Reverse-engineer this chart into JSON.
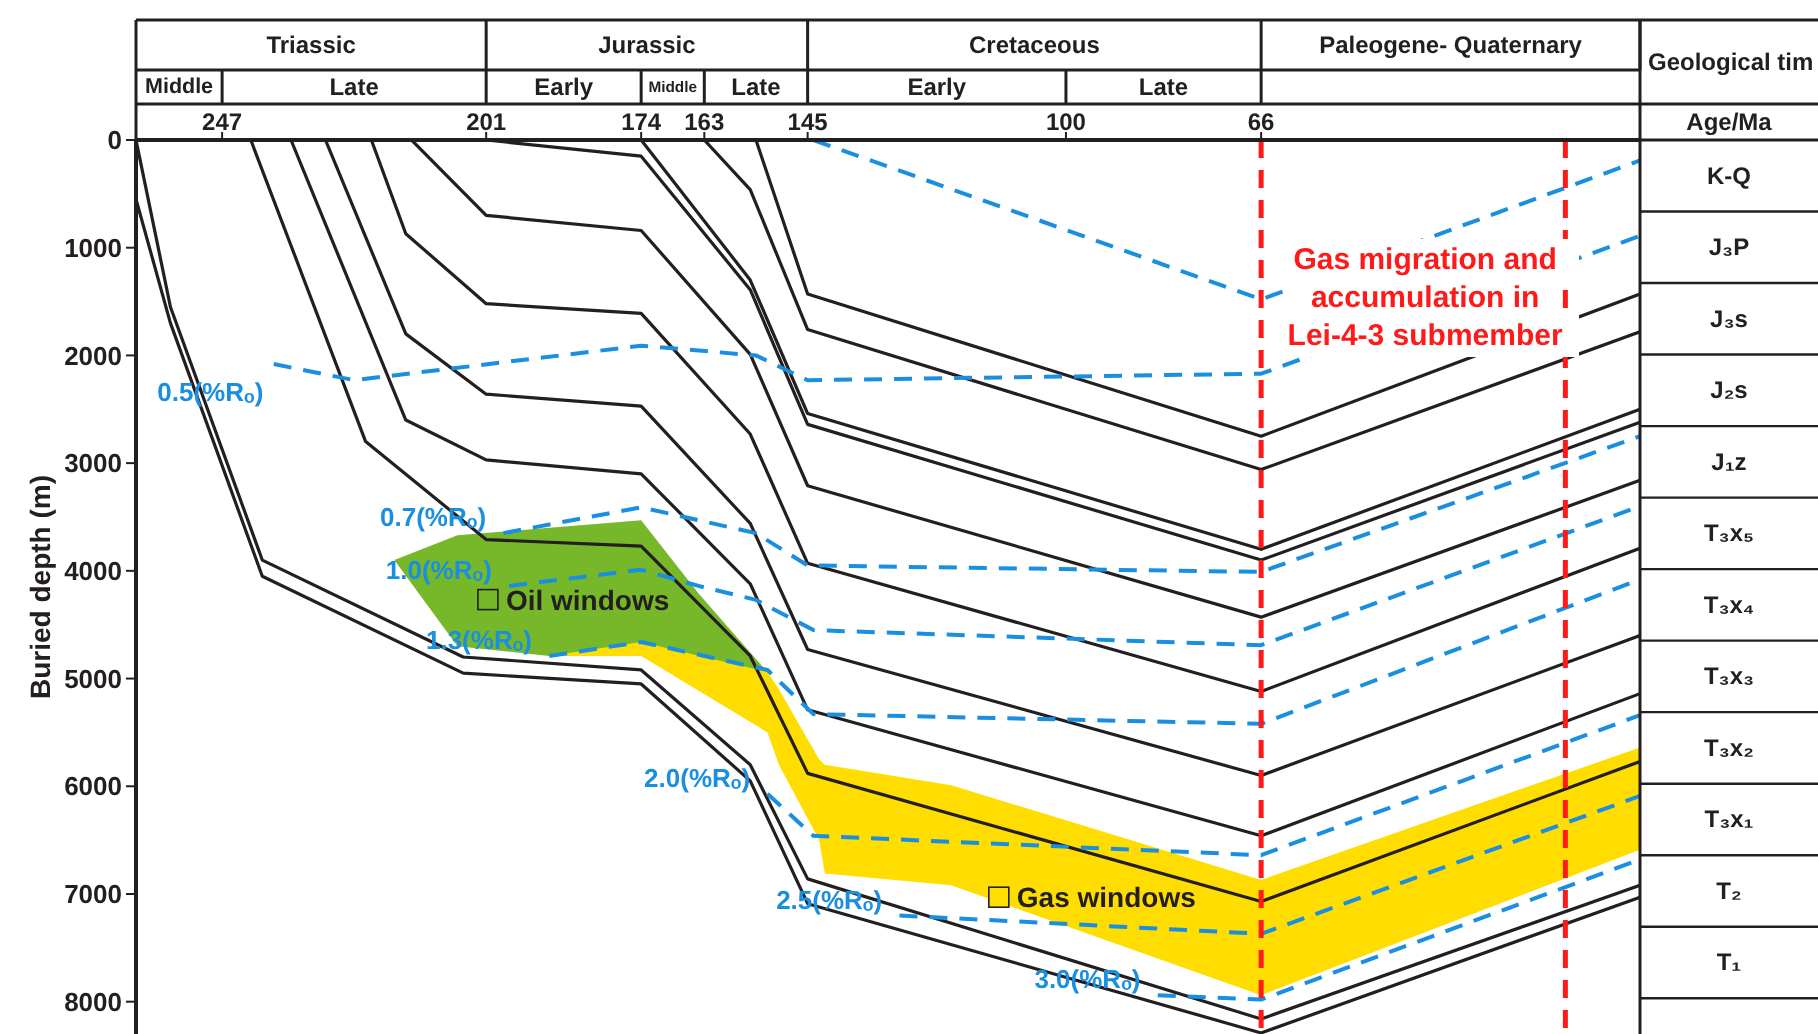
{
  "chart_data": {
    "type": "line",
    "ylabel": "Buried depth (m)",
    "xlabel": "Age/Ma",
    "xlim": [
      262,
      0
    ],
    "xticks": [
      247,
      201,
      174,
      163,
      145,
      100,
      66
    ],
    "ylim": [
      8300,
      0
    ],
    "yticks": [
      0,
      1000,
      2000,
      3000,
      4000,
      5000,
      6000,
      7000,
      8000
    ],
    "marker": "none",
    "series": [
      {
        "name": "Oil windows",
        "color": "#76b82a",
        "x": [
          217,
          206,
          190,
          174,
          164,
          152
        ],
        "values": [
          null,
          null,
          null,
          null,
          null,
          null
        ],
        "lower": [
          3900,
          3670,
          3600,
          3530,
          4210,
          4940
        ],
        "upper": [
          3900,
          4700,
          4790,
          4680,
          4800,
          4940
        ]
      },
      {
        "name": "Gas windows",
        "color": "#ffdd00",
        "x": [
          190,
          174,
          152,
          150,
          143,
          142,
          120,
          66,
          0
        ],
        "values": [
          null,
          null,
          null,
          null,
          null,
          null,
          null,
          null,
          null
        ],
        "lower": [
          4790,
          4660,
          4940,
          5100,
          5750,
          5800,
          5990,
          6870,
          5640
        ],
        "upper": [
          4790,
          4790,
          5500,
          5800,
          6500,
          6810,
          6920,
          7940,
          6590
        ]
      },
      {
        "color": "#231f20",
        "x": [
          154,
          145,
          66,
          0
        ],
        "values": [
          0,
          1430,
          2750,
          1430
        ]
      },
      {
        "color": "#231f20",
        "x": [
          163,
          155,
          145,
          66,
          0
        ],
        "values": [
          0,
          460,
          1760,
          3060,
          1780
        ]
      },
      {
        "color": "#231f20",
        "x": [
          174,
          155,
          145,
          66,
          0
        ],
        "values": [
          0,
          1300,
          2540,
          3800,
          2500
        ]
      },
      {
        "color": "#231f20",
        "x": [
          201,
          174,
          155,
          145,
          66,
          0
        ],
        "values": [
          0,
          150,
          1390,
          2640,
          3900,
          2620
        ]
      },
      {
        "color": "#231f20",
        "x": [
          214,
          201,
          174,
          155,
          145,
          66,
          0
        ],
        "values": [
          0,
          700,
          840,
          1990,
          3210,
          4430,
          3160
        ]
      },
      {
        "color": "#231f20",
        "x": [
          221,
          215,
          201,
          174,
          155,
          145,
          66,
          0
        ],
        "values": [
          0,
          870,
          1520,
          1610,
          2730,
          3930,
          5120,
          3790
        ]
      },
      {
        "color": "#231f20",
        "x": [
          229,
          215,
          201,
          174,
          155,
          145,
          66,
          0
        ],
        "values": [
          0,
          1800,
          2360,
          2470,
          3560,
          4730,
          5900,
          4600
        ]
      },
      {
        "color": "#231f20",
        "x": [
          235,
          215,
          201,
          174,
          155,
          145,
          66,
          0
        ],
        "values": [
          0,
          2600,
          2970,
          3100,
          4120,
          5290,
          6460,
          5140
        ]
      },
      {
        "color": "#231f20",
        "x": [
          242,
          222,
          201,
          174,
          155,
          145,
          66,
          0
        ],
        "values": [
          0,
          2800,
          3710,
          3770,
          4790,
          5880,
          7070,
          5770
        ]
      },
      {
        "color": "#231f20",
        "x": [
          262,
          256,
          240,
          205,
          174,
          155,
          145,
          66,
          0
        ],
        "values": [
          0,
          1550,
          3900,
          4800,
          4920,
          5800,
          6860,
          8160,
          6920
        ]
      },
      {
        "color": "#231f20",
        "x": [
          262,
          256,
          240,
          205,
          174,
          155,
          145,
          66,
          0
        ],
        "values": [
          550,
          1700,
          4050,
          4950,
          5050,
          5950,
          7090,
          8290,
          7030
        ]
      },
      {
        "line_style": "dashed",
        "color": "#1a8fe0",
        "x": [
          144,
          66,
          0
        ],
        "values": [
          0,
          1480,
          190
        ]
      },
      {
        "line_style": "dashed",
        "name": "0.5(%Rₒ)",
        "color": "#1a8fe0",
        "x": [
          238,
          224,
          174,
          154,
          145,
          66,
          0
        ],
        "values": [
          2080,
          2230,
          1910,
          2000,
          2230,
          2170,
          890
        ]
      },
      {
        "line_style": "dashed",
        "name": "0.7(%Rₒ)",
        "color": "#1a8fe0",
        "x": [
          198,
          174,
          154,
          145,
          66,
          0
        ],
        "values": [
          3650,
          3410,
          3650,
          3950,
          4010,
          2750
        ]
      },
      {
        "line_style": "dashed",
        "name": "1.0(%Rₒ)",
        "color": "#1a8fe0",
        "x": [
          197,
          174,
          164,
          154,
          144,
          66,
          0
        ],
        "values": [
          4140,
          3990,
          4140,
          4270,
          4550,
          4690,
          3400
        ]
      },
      {
        "line_style": "dashed",
        "name": "1.3(%Rₒ)",
        "color": "#1a8fe0",
        "x": [
          190,
          174,
          152,
          144,
          66,
          0
        ],
        "values": [
          4790,
          4660,
          4920,
          5330,
          5420,
          4080
        ]
      },
      {
        "line_style": "dashed",
        "name": "2.0(%Rₒ)",
        "color": "#1a8fe0",
        "x": [
          152,
          144,
          66,
          0
        ],
        "values": [
          6070,
          6460,
          6640,
          5340
        ]
      },
      {
        "line_style": "dashed",
        "name": "2.5(%Rₒ)",
        "color": "#1a8fe0",
        "x": [
          129,
          66,
          0
        ],
        "values": [
          7200,
          7370,
          6090
        ]
      },
      {
        "line_style": "dashed",
        "name": "3.0(%Rₒ)",
        "color": "#1a8fe0",
        "x": [
          84,
          66,
          0
        ],
        "values": [
          7940,
          7980,
          6680
        ]
      }
    ],
    "ref_lines": [
      {
        "axis": "x",
        "value": 66,
        "label": "Gas migration and accumulation in Lei-4-3 submember",
        "color": "#ff1a1a",
        "line_style": "dashed"
      },
      {
        "axis": "x",
        "value": 13,
        "color": "#ff1a1a",
        "line_style": "dashed"
      }
    ],
    "annotations": [
      "Geological tim",
      "Triassic",
      "Jurassic",
      "Cretaceous",
      "Paleogene- Quaternary",
      "Middle",
      "Late",
      "Early",
      "Middle",
      "Late",
      "Early",
      "Late",
      "K-Q",
      "J₃P",
      "J₃s",
      "J₂s",
      "J₁z",
      "T₃x₅",
      "T₃x₄",
      "T₃x₃",
      "T₃x₂",
      "T₃x₁",
      "T₂",
      "T₁"
    ]
  }
}
